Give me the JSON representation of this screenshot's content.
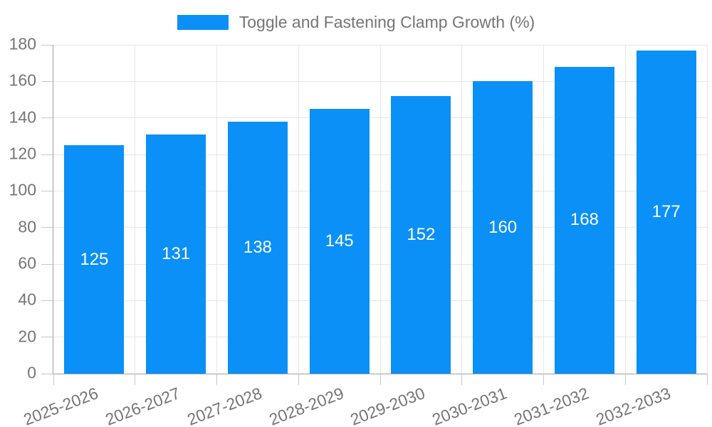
{
  "chart_data": {
    "type": "bar",
    "title": "",
    "legend_label": "Toggle and Fastening Clamp Growth (%)",
    "categories": [
      "2025-2026",
      "2026-2027",
      "2027-2028",
      "2028-2029",
      "2029-2030",
      "2030-2031",
      "2031-2032",
      "2032-2033"
    ],
    "values": [
      125,
      131,
      138,
      145,
      152,
      160,
      168,
      177
    ],
    "value_labels": [
      "125",
      "131",
      "138",
      "145",
      "152",
      "160",
      "168",
      "177"
    ],
    "xlabel": "",
    "ylabel": "",
    "ylim": [
      0,
      180
    ],
    "ytick_step": 20,
    "ytick_labels": [
      "0",
      "20",
      "40",
      "60",
      "80",
      "100",
      "120",
      "140",
      "160",
      "180"
    ],
    "grid": "on",
    "legend_position": "top-center",
    "x_label_rotation_deg": -21,
    "colors": {
      "bar": "#0a90f7",
      "value_label_text": "#ffffff",
      "axis_line": "#a2a2a2",
      "gridline": "#e6e6e6",
      "tick_mark": "#c6c6c6",
      "tick_text": "#757575",
      "legend_text": "#757575",
      "background": "#ffffff"
    }
  }
}
